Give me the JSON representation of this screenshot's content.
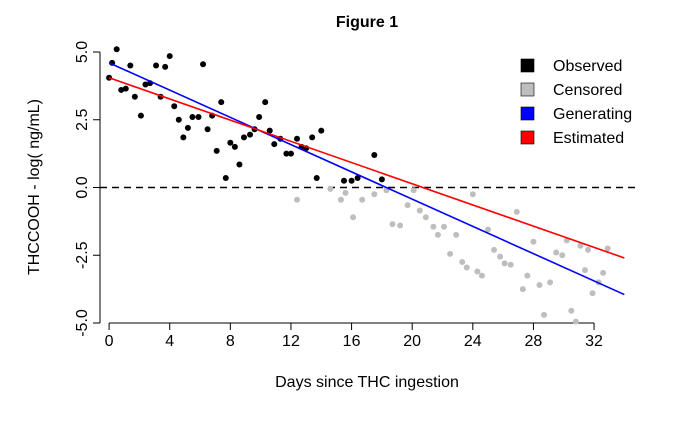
{
  "chart_data": {
    "type": "scatter",
    "title": "Figure 1",
    "xlabel": "Days since THC ingestion",
    "ylabel": "THCCOOH - log( ng/mL)",
    "xlim": [
      -0.6,
      34.9
    ],
    "ylim": [
      -5.0,
      5.0
    ],
    "x_ticks": [
      0,
      4,
      8,
      12,
      16,
      20,
      24,
      28,
      32
    ],
    "y_ticks": [
      -5.0,
      -2.5,
      0.0,
      2.5,
      5.0
    ],
    "y_tick_labels": [
      "-5.0",
      "-2.5",
      "0.0",
      "2.5",
      "5.0"
    ],
    "reference_line": {
      "y": 0.0,
      "style": "dashed",
      "color": "#000000"
    },
    "grid": false,
    "legend_position": "top-right",
    "legend": [
      {
        "label": "Observed",
        "color": "#000000"
      },
      {
        "label": "Censored",
        "color": "#bebebe"
      },
      {
        "label": "Generating",
        "color": "#0000ff"
      },
      {
        "label": "Estimated",
        "color": "#ff0000"
      }
    ],
    "series": [
      {
        "name": "Observed",
        "kind": "points",
        "color": "#000000",
        "points": [
          [
            0.0,
            4.05
          ],
          [
            0.2,
            4.6
          ],
          [
            0.5,
            5.1
          ],
          [
            0.8,
            3.6
          ],
          [
            1.1,
            3.65
          ],
          [
            1.4,
            4.5
          ],
          [
            1.7,
            3.35
          ],
          [
            2.1,
            2.65
          ],
          [
            2.4,
            3.8
          ],
          [
            2.7,
            3.85
          ],
          [
            3.1,
            4.5
          ],
          [
            3.4,
            3.35
          ],
          [
            3.7,
            4.45
          ],
          [
            4.0,
            4.85
          ],
          [
            4.3,
            3.0
          ],
          [
            4.6,
            2.5
          ],
          [
            4.9,
            1.85
          ],
          [
            5.2,
            2.2
          ],
          [
            5.5,
            2.6
          ],
          [
            5.9,
            2.6
          ],
          [
            6.2,
            4.55
          ],
          [
            6.5,
            2.15
          ],
          [
            6.8,
            2.65
          ],
          [
            7.1,
            1.35
          ],
          [
            7.4,
            3.15
          ],
          [
            7.7,
            0.35
          ],
          [
            8.0,
            1.65
          ],
          [
            8.3,
            1.5
          ],
          [
            8.6,
            0.85
          ],
          [
            8.9,
            1.85
          ],
          [
            9.3,
            1.95
          ],
          [
            9.6,
            2.15
          ],
          [
            9.9,
            2.6
          ],
          [
            10.3,
            3.15
          ],
          [
            10.6,
            2.1
          ],
          [
            10.9,
            1.6
          ],
          [
            11.3,
            1.8
          ],
          [
            11.7,
            1.25
          ],
          [
            12.0,
            1.25
          ],
          [
            12.4,
            1.8
          ],
          [
            12.7,
            1.5
          ],
          [
            13.0,
            1.45
          ],
          [
            13.4,
            1.85
          ],
          [
            13.7,
            0.35
          ],
          [
            14.0,
            2.1
          ],
          [
            15.5,
            0.25
          ],
          [
            16.0,
            0.25
          ],
          [
            16.4,
            0.35
          ],
          [
            17.5,
            1.2
          ],
          [
            18.0,
            0.3
          ]
        ]
      },
      {
        "name": "Censored",
        "kind": "points",
        "color": "#bebebe",
        "points": [
          [
            12.4,
            -0.45
          ],
          [
            14.6,
            -0.05
          ],
          [
            15.3,
            -0.45
          ],
          [
            15.6,
            -0.2
          ],
          [
            16.1,
            -1.1
          ],
          [
            16.7,
            -0.45
          ],
          [
            17.5,
            -0.25
          ],
          [
            18.3,
            -0.1
          ],
          [
            18.7,
            -1.35
          ],
          [
            19.2,
            -1.4
          ],
          [
            19.7,
            -0.65
          ],
          [
            20.1,
            -0.1
          ],
          [
            20.5,
            -0.85
          ],
          [
            20.9,
            -1.1
          ],
          [
            21.4,
            -1.45
          ],
          [
            21.7,
            -1.75
          ],
          [
            22.1,
            -1.45
          ],
          [
            22.5,
            -2.45
          ],
          [
            22.9,
            -1.75
          ],
          [
            23.3,
            -2.75
          ],
          [
            23.6,
            -2.95
          ],
          [
            24.0,
            -0.25
          ],
          [
            24.3,
            -3.1
          ],
          [
            24.6,
            -3.25
          ],
          [
            25.0,
            -1.55
          ],
          [
            25.4,
            -2.3
          ],
          [
            25.8,
            -2.55
          ],
          [
            26.1,
            -2.8
          ],
          [
            26.5,
            -2.85
          ],
          [
            26.9,
            -0.9
          ],
          [
            27.3,
            -3.75
          ],
          [
            27.6,
            -3.25
          ],
          [
            28.0,
            -2.0
          ],
          [
            28.4,
            -3.6
          ],
          [
            28.7,
            -4.7
          ],
          [
            29.1,
            -3.5
          ],
          [
            29.5,
            -2.4
          ],
          [
            29.9,
            -2.5
          ],
          [
            30.2,
            -1.95
          ],
          [
            30.5,
            -4.55
          ],
          [
            30.8,
            -4.95
          ],
          [
            31.1,
            -2.15
          ],
          [
            31.4,
            -3.05
          ],
          [
            31.6,
            -2.3
          ],
          [
            31.9,
            -3.9
          ],
          [
            32.3,
            -3.5
          ],
          [
            32.6,
            -3.15
          ],
          [
            32.9,
            -2.25
          ]
        ]
      },
      {
        "name": "Generating",
        "kind": "line",
        "color": "#0000ff",
        "points": [
          [
            0.0,
            4.6
          ],
          [
            34.0,
            -3.95
          ]
        ]
      },
      {
        "name": "Estimated",
        "kind": "line",
        "color": "#ff0000",
        "points": [
          [
            0.0,
            4.05
          ],
          [
            34.0,
            -2.6
          ]
        ]
      }
    ]
  }
}
